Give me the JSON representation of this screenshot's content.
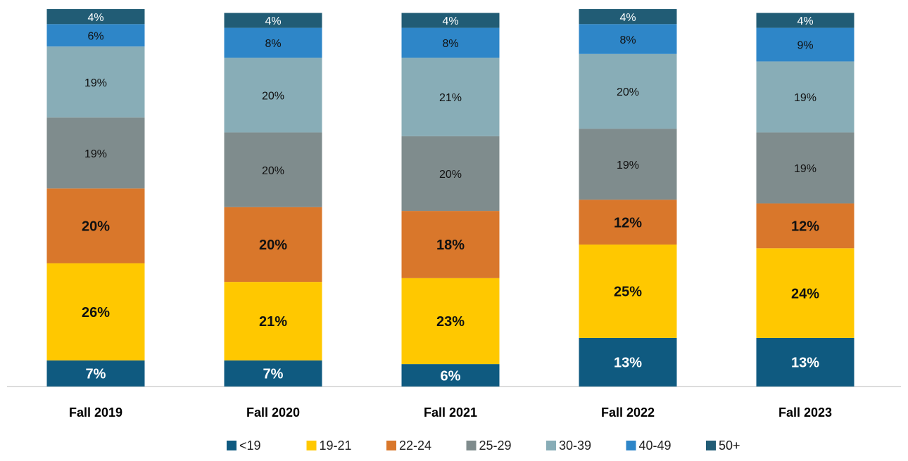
{
  "chart_data": {
    "type": "stacked_bar",
    "categories": [
      "Fall 2019",
      "Fall 2020",
      "Fall 2021",
      "Fall 2022",
      "Fall 2023"
    ],
    "ylim": [
      0,
      101
    ],
    "series": [
      {
        "name": "<19",
        "color": "#0f5a80",
        "bold": true,
        "values": [
          7,
          7,
          6,
          13,
          13
        ],
        "value_labels": [
          "7%",
          "7%",
          "6%",
          "13%",
          "13%"
        ]
      },
      {
        "name": "19-21",
        "color": "#ffc800",
        "bold": true,
        "values": [
          26,
          21,
          23,
          25,
          24
        ],
        "value_labels": [
          "26%",
          "21%",
          "23%",
          "25%",
          "24%"
        ]
      },
      {
        "name": "22-24",
        "color": "#d9772b",
        "bold": true,
        "values": [
          20,
          20,
          18,
          12,
          12
        ],
        "value_labels": [
          "20%",
          "20%",
          "18%",
          "12%",
          "12%"
        ]
      },
      {
        "name": "25-29",
        "color": "#7f8c8d",
        "bold": false,
        "values": [
          19,
          20,
          20,
          19,
          19
        ],
        "value_labels": [
          "19%",
          "20%",
          "20%",
          "19%",
          "19%"
        ]
      },
      {
        "name": "30-39",
        "color": "#88adb7",
        "bold": false,
        "values": [
          19,
          20,
          21,
          20,
          19
        ],
        "value_labels": [
          "19%",
          "20%",
          "21%",
          "20%",
          "19%"
        ]
      },
      {
        "name": "40-49",
        "color": "#2e86c8",
        "bold": false,
        "values": [
          6,
          8,
          8,
          8,
          9
        ],
        "value_labels": [
          "6%",
          "8%",
          "8%",
          "8%",
          "9%"
        ]
      },
      {
        "name": "50+",
        "color": "#215c75",
        "bold": false,
        "values": [
          4,
          4,
          4,
          4,
          4
        ],
        "value_labels": [
          "4%",
          "4%",
          "4%",
          "4%",
          "4%"
        ]
      }
    ]
  }
}
